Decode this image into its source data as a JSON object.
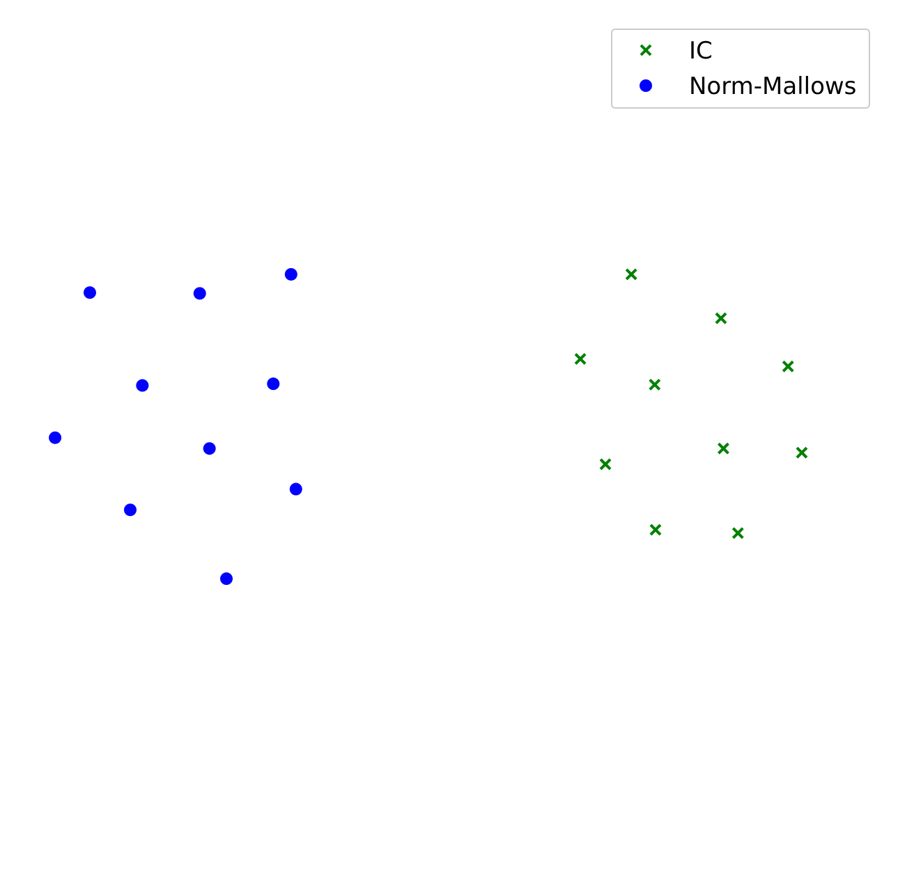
{
  "chart_data": {
    "type": "scatter",
    "title": "",
    "xlabel": "",
    "ylabel": "",
    "axes_visible": false,
    "grid": false,
    "legend_position": "top-right",
    "xlim": [
      0,
      100
    ],
    "ylim": [
      0,
      100
    ],
    "series": [
      {
        "name": "IC",
        "marker": "x",
        "color": "#008000",
        "points": [
          [
            72.6,
            70.7
          ],
          [
            83.7,
            65.4
          ],
          [
            66.3,
            60.5
          ],
          [
            75.5,
            57.4
          ],
          [
            92.0,
            59.6
          ],
          [
            84.0,
            49.7
          ],
          [
            69.4,
            47.8
          ],
          [
            93.7,
            49.2
          ],
          [
            75.6,
            39.9
          ],
          [
            85.8,
            39.5
          ]
        ]
      },
      {
        "name": "Norm-Mallows",
        "marker": "o",
        "color": "#0000ff",
        "points": [
          [
            5.6,
            68.5
          ],
          [
            19.2,
            68.4
          ],
          [
            30.5,
            70.7
          ],
          [
            12.1,
            57.3
          ],
          [
            28.3,
            57.5
          ],
          [
            1.3,
            51.0
          ],
          [
            20.4,
            49.7
          ],
          [
            31.1,
            44.8
          ],
          [
            10.6,
            42.3
          ],
          [
            22.5,
            34.0
          ]
        ]
      }
    ]
  }
}
